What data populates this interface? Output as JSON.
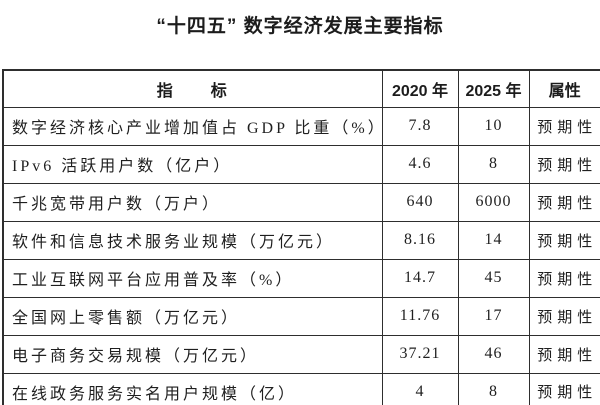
{
  "title": "“十四五” 数字经济发展主要指标",
  "table": {
    "headers": {
      "indicator": "指　　标",
      "y2020": "2020 年",
      "y2025": "2025 年",
      "attribute": "属性"
    },
    "rows": [
      {
        "indicator": "数字经济核心产业增加值占 GDP 比重（%）",
        "y2020": "7.8",
        "y2025": "10",
        "attribute": "预期性"
      },
      {
        "indicator": "IPv6 活跃用户数（亿户）",
        "y2020": "4.6",
        "y2025": "8",
        "attribute": "预期性"
      },
      {
        "indicator": "千兆宽带用户数（万户）",
        "y2020": "640",
        "y2025": "6000",
        "attribute": "预期性"
      },
      {
        "indicator": "软件和信息技术服务业规模（万亿元）",
        "y2020": "8.16",
        "y2025": "14",
        "attribute": "预期性"
      },
      {
        "indicator": "工业互联网平台应用普及率（%）",
        "y2020": "14.7",
        "y2025": "45",
        "attribute": "预期性"
      },
      {
        "indicator": "全国网上零售额（万亿元）",
        "y2020": "11.76",
        "y2025": "17",
        "attribute": "预期性"
      },
      {
        "indicator": "电子商务交易规模（万亿元）",
        "y2020": "37.21",
        "y2025": "46",
        "attribute": "预期性"
      },
      {
        "indicator": "在线政务服务实名用户规模（亿）",
        "y2020": "4",
        "y2025": "8",
        "attribute": "预期性"
      }
    ]
  },
  "colors": {
    "background": "#ffffff",
    "text": "#1f1f1f",
    "border": "#2e2e2e"
  }
}
